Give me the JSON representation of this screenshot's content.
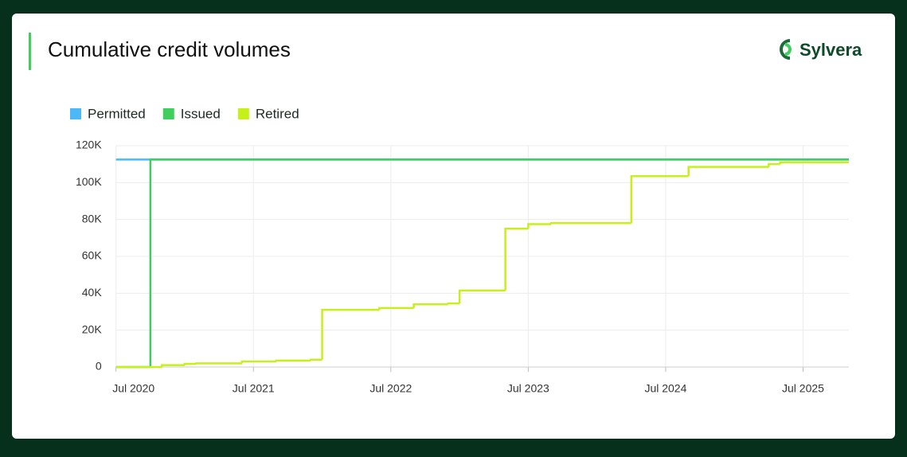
{
  "brand": "Sylvera",
  "chart_data": {
    "type": "step",
    "title": "Cumulative credit volumes",
    "xlim": [
      "2020-07",
      "2025-11"
    ],
    "xticks": [
      {
        "value": "2020-07",
        "label": "Jul 2020"
      },
      {
        "value": "2021-07",
        "label": "Jul 2021"
      },
      {
        "value": "2022-07",
        "label": "Jul 2022"
      },
      {
        "value": "2023-07",
        "label": "Jul 2023"
      },
      {
        "value": "2024-07",
        "label": "Jul 2024"
      },
      {
        "value": "2025-07",
        "label": "Jul 2025"
      }
    ],
    "ylim": [
      0,
      120000
    ],
    "yticks": [
      0,
      {
        "value": 20000,
        "label": "20K"
      },
      {
        "value": 40000,
        "label": "40K"
      },
      {
        "value": 60000,
        "label": "60K"
      },
      {
        "value": 80000,
        "label": "80K"
      },
      {
        "value": 100000,
        "label": "100K"
      },
      {
        "value": 120000,
        "label": "120K"
      }
    ],
    "grid": true,
    "legend": "top-left",
    "series": [
      {
        "name": "Permitted",
        "color": "#4cb8f5",
        "x": [
          "2020-07",
          "2025-11"
        ],
        "values": [
          112500,
          112500
        ]
      },
      {
        "name": "Issued",
        "color": "#3ecf5e",
        "x": [
          "2020-07",
          "2020-10",
          "2025-11"
        ],
        "values": [
          0,
          112500,
          112500
        ]
      },
      {
        "name": "Retired",
        "color": "#c6f01a",
        "x": [
          "2020-07",
          "2020-11",
          "2021-01",
          "2021-02",
          "2021-06",
          "2021-09",
          "2021-12",
          "2022-01",
          "2022-06",
          "2022-09",
          "2022-12",
          "2023-01",
          "2023-05",
          "2023-07",
          "2023-09",
          "2024-04",
          "2024-09",
          "2025-04",
          "2025-05",
          "2025-11"
        ],
        "values": [
          0,
          1000,
          1700,
          2000,
          3000,
          3500,
          4000,
          31000,
          32000,
          34000,
          34500,
          41500,
          75000,
          77500,
          78000,
          103500,
          108500,
          110000,
          111000,
          111000
        ]
      }
    ]
  }
}
